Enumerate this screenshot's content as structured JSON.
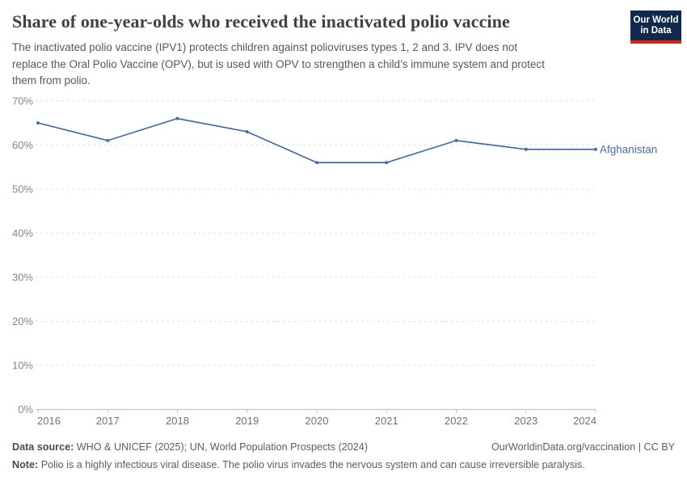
{
  "header": {
    "title": "Share of one-year-olds who received the inactivated polio vaccine",
    "subtitle": "The inactivated polio vaccine (IPV1) protects children against polioviruses types 1, 2 and 3. IPV does not\nreplace the Oral Polio Vaccine (OPV), but is used with OPV to strengthen a child’s immune system and protect\nthem from polio.",
    "logo": {
      "line1": "Our World",
      "line2": "in Data"
    }
  },
  "chart_data": {
    "type": "line",
    "title": "Share of one-year-olds who received the inactivated polio vaccine",
    "xlabel": "",
    "ylabel": "",
    "x": [
      2016,
      2017,
      2018,
      2019,
      2020,
      2021,
      2022,
      2023,
      2024
    ],
    "series": [
      {
        "name": "Afghanistan",
        "values": [
          65,
          61,
          66,
          63,
          56,
          56,
          61,
          59,
          59
        ]
      }
    ],
    "ylim": [
      0,
      70
    ],
    "ytick_step": 10,
    "ytick_suffix": "%",
    "grid": "dashed horizontal gridlines",
    "legend_position": "end-of-line label"
  },
  "footer": {
    "data_source_label": "Data source:",
    "data_source": "WHO & UNICEF (2025); UN, World Population Prospects (2024)",
    "license": "OurWorldinData.org/vaccination | CC BY",
    "note_label": "Note:",
    "note": "Polio is a highly infectious viral disease. The polio virus invades the nervous system and can cause irreversible paralysis."
  },
  "colors": {
    "line": "#4c6a9c",
    "entity_label": "#4c6a9c",
    "grid": "#dcdcdc",
    "axis": "#bcbfc2",
    "y_tick_label": "#83878a",
    "x_tick_label": "#6f7376",
    "logo_bg": "#12294b",
    "logo_accent": "#cb2d24"
  }
}
